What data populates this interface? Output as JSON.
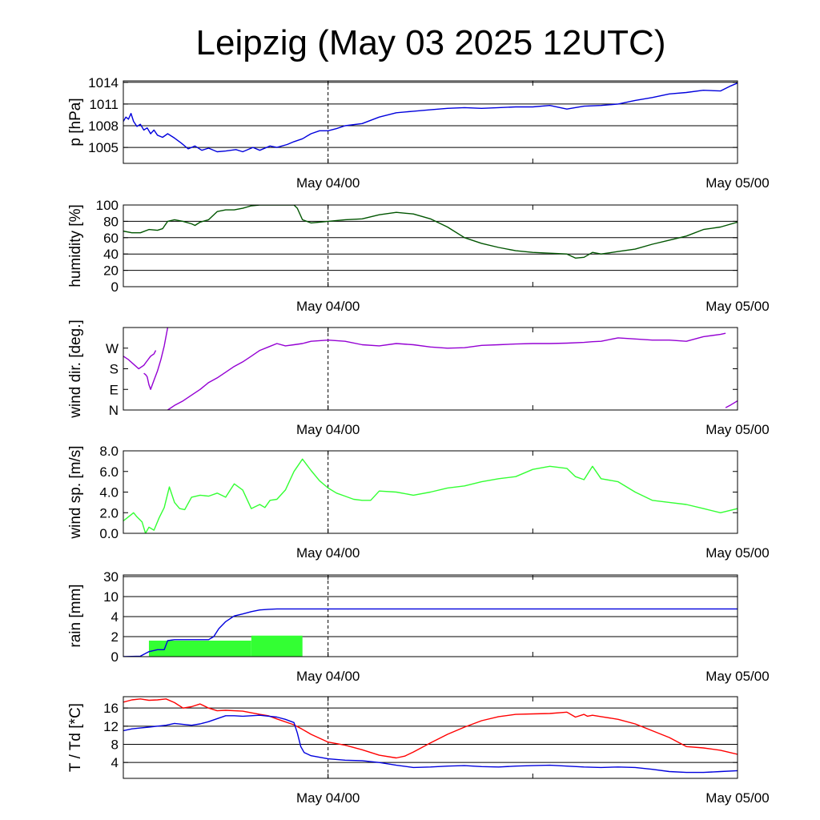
{
  "title": "Leipzig (May 03 2025 12UTC)",
  "colors": {
    "pressure": "#0000dd",
    "humidity": "#005500",
    "wind_dir": "#9400d3",
    "wind_speed": "#33ff33",
    "rain_bar": "#33ff33",
    "rain_line": "#0000dd",
    "temperature": "#ff0000",
    "dewpoint": "#0000dd"
  },
  "x_axis": {
    "ticks": [
      "May 04/00",
      "May 05/00"
    ],
    "range_hours": [
      0,
      36
    ],
    "marked_hour": 12,
    "note": "hours after May 03 12UTC"
  },
  "chart_data": [
    {
      "type": "line",
      "ylabel": "p [hPa]",
      "ylim": [
        1002.8,
        1014.2
      ],
      "yticks": [
        1005,
        1008,
        1011,
        1014
      ],
      "ytick_labels": [
        "1005",
        "1008",
        "1011",
        "1014"
      ],
      "grid": true,
      "series": [
        {
          "color_key": "pressure",
          "x": [
            0,
            0.15,
            0.3,
            0.45,
            0.6,
            0.8,
            1.0,
            1.2,
            1.4,
            1.6,
            1.8,
            2.0,
            2.3,
            2.6,
            3.0,
            3.4,
            3.8,
            4.2,
            4.6,
            5.0,
            5.5,
            6.0,
            6.6,
            7.0,
            7.6,
            8.0,
            8.6,
            9.0,
            9.6,
            10.0,
            10.5,
            11.0,
            11.5,
            12.0,
            12.5,
            13.0,
            14.0,
            15.0,
            16.0,
            17.0,
            18.0,
            19.0,
            20.0,
            21.0,
            22.0,
            23.0,
            24.0,
            25.0,
            26.0,
            27.0,
            28.0,
            29.0,
            30.0,
            31.0,
            32.0,
            33.0,
            34.0,
            35.0,
            35.6,
            36.0
          ],
          "y": [
            1008.6,
            1009.2,
            1008.9,
            1009.7,
            1008.6,
            1007.9,
            1008.2,
            1007.4,
            1007.7,
            1006.9,
            1007.4,
            1006.7,
            1006.4,
            1006.9,
            1006.3,
            1005.6,
            1004.8,
            1005.2,
            1004.6,
            1004.9,
            1004.4,
            1004.5,
            1004.7,
            1004.4,
            1005.0,
            1004.6,
            1005.2,
            1005.0,
            1005.4,
            1005.8,
            1006.2,
            1006.9,
            1007.3,
            1007.3,
            1007.6,
            1008.0,
            1008.3,
            1009.2,
            1009.8,
            1010.0,
            1010.2,
            1010.4,
            1010.5,
            1010.4,
            1010.5,
            1010.6,
            1010.6,
            1010.8,
            1010.3,
            1010.7,
            1010.8,
            1011.0,
            1011.5,
            1011.9,
            1012.4,
            1012.6,
            1012.9,
            1012.8,
            1013.5,
            1013.9
          ]
        }
      ]
    },
    {
      "type": "line",
      "ylabel": "humidity [%]",
      "ylim": [
        0,
        100
      ],
      "yticks": [
        0,
        20,
        40,
        60,
        80,
        100
      ],
      "ytick_labels": [
        "0",
        "20",
        "40",
        "60",
        "80",
        "100"
      ],
      "grid": true,
      "series": [
        {
          "color_key": "humidity",
          "x": [
            0,
            0.5,
            1.0,
            1.5,
            2.0,
            2.3,
            2.6,
            3.0,
            3.5,
            4.0,
            4.2,
            4.5,
            5.0,
            5.5,
            6.0,
            6.5,
            7.0,
            7.5,
            8.0,
            8.5,
            9.0,
            9.5,
            10.0,
            10.2,
            10.5,
            11.0,
            11.5,
            12.0,
            12.5,
            13.0,
            14.0,
            15.0,
            16.0,
            17.0,
            18.0,
            19.0,
            20.0,
            21.0,
            22.0,
            23.0,
            24.0,
            25.0,
            26.0,
            26.5,
            27.0,
            27.5,
            28.0,
            29.0,
            30.0,
            31.0,
            32.0,
            33.0,
            34.0,
            35.0,
            36.0
          ],
          "y": [
            68,
            66,
            66,
            70,
            69,
            71,
            80,
            82,
            80,
            77,
            75,
            79,
            82,
            92,
            94,
            94,
            96,
            99,
            100,
            100,
            100,
            100,
            100,
            96,
            82,
            78,
            79,
            80,
            81,
            82,
            83,
            88,
            91,
            89,
            83,
            73,
            60,
            53,
            48,
            44,
            42,
            41,
            40,
            35,
            36,
            42,
            40,
            43,
            46,
            52,
            57,
            62,
            70,
            73,
            79
          ]
        }
      ]
    },
    {
      "type": "line",
      "ylabel": "wind dir. [deg.]",
      "ylim": [
        0,
        360
      ],
      "yticks": [
        0,
        90,
        180,
        270
      ],
      "ytick_labels": [
        "N",
        "E",
        "S",
        "W"
      ],
      "grid": false,
      "series": [
        {
          "color_key": "wind_dir",
          "x": [
            0,
            0.3,
            0.6,
            0.9,
            1.2,
            1.4,
            1.6,
            1.8,
            1.9
          ],
          "y": [
            235,
            220,
            200,
            180,
            195,
            215,
            235,
            245,
            260
          ]
        },
        {
          "color_key": "wind_dir",
          "x": [
            1.2,
            1.3,
            1.4,
            1.5,
            1.6,
            1.8,
            2.0,
            2.2,
            2.4,
            2.6
          ],
          "y": [
            160,
            155,
            145,
            110,
            90,
            130,
            170,
            220,
            280,
            360
          ]
        },
        {
          "color_key": "wind_dir",
          "x": [
            2.6,
            3.0,
            3.5,
            4.0,
            4.5,
            5.0,
            5.5,
            6.0,
            6.5,
            7.0,
            7.5,
            8.0,
            8.5,
            9.0,
            9.5,
            10.0,
            10.5,
            11.0,
            12.0,
            13.0,
            14.0,
            15.0,
            16.0,
            17.0,
            18.0,
            19.0,
            20.0,
            21.0,
            22.0,
            23.0,
            24.0,
            25.0,
            26.0,
            27.0,
            27.5,
            28.0,
            29.0,
            30.0,
            31.0,
            32.0,
            33.0,
            34.0,
            35.0,
            35.3
          ],
          "y": [
            0,
            20,
            40,
            65,
            90,
            120,
            140,
            165,
            190,
            210,
            235,
            260,
            275,
            290,
            280,
            285,
            290,
            300,
            305,
            300,
            285,
            280,
            290,
            285,
            275,
            270,
            272,
            282,
            285,
            288,
            290,
            290,
            292,
            295,
            298,
            300,
            315,
            310,
            305,
            305,
            300,
            320,
            330,
            335
          ]
        },
        {
          "color_key": "wind_dir",
          "x": [
            35.3,
            35.6,
            36.0
          ],
          "y": [
            10,
            22,
            40
          ]
        }
      ]
    },
    {
      "type": "line",
      "ylabel": "wind sp. [m/s]",
      "ylim": [
        0,
        8
      ],
      "yticks": [
        0,
        2,
        4,
        6,
        8
      ],
      "ytick_labels": [
        "0.0",
        "2.0",
        "4.0",
        "6.0",
        "8.0"
      ],
      "grid": false,
      "series": [
        {
          "color_key": "wind_speed",
          "x": [
            0,
            0.3,
            0.6,
            0.8,
            1.1,
            1.3,
            1.5,
            1.8,
            2.1,
            2.4,
            2.7,
            3.0,
            3.3,
            3.6,
            4.0,
            4.5,
            5.0,
            5.5,
            6.0,
            6.5,
            7.0,
            7.5,
            8.0,
            8.3,
            8.6,
            9.0,
            9.5,
            10.0,
            10.5,
            11.0,
            11.5,
            12.0,
            12.5,
            13.0,
            13.5,
            14.0,
            14.5,
            15.0,
            16.0,
            17.0,
            18.0,
            19.0,
            20.0,
            21.0,
            22.0,
            23.0,
            24.0,
            25.0,
            26.0,
            26.5,
            27.0,
            27.5,
            28.0,
            29.0,
            30.0,
            31.0,
            32.0,
            33.0,
            34.0,
            35.0,
            36.0
          ],
          "y": [
            1.2,
            1.6,
            2.0,
            1.6,
            1.1,
            0.0,
            0.6,
            0.3,
            1.5,
            2.5,
            4.5,
            3.0,
            2.4,
            2.3,
            3.5,
            3.7,
            3.6,
            3.9,
            3.5,
            4.8,
            4.2,
            2.4,
            2.8,
            2.5,
            3.2,
            3.3,
            4.2,
            6.0,
            7.2,
            6.1,
            5.1,
            4.4,
            3.9,
            3.6,
            3.3,
            3.2,
            3.2,
            4.1,
            4.0,
            3.7,
            4.0,
            4.4,
            4.6,
            5.0,
            5.3,
            5.5,
            6.2,
            6.5,
            6.3,
            5.5,
            5.2,
            6.5,
            5.3,
            5.0,
            4.0,
            3.2,
            3.0,
            2.8,
            2.4,
            2.0,
            2.4
          ]
        }
      ]
    },
    {
      "type": "bar+line",
      "ylabel": "rain [mm]",
      "ylim": [
        0,
        30
      ],
      "yticks": [
        0,
        2,
        4,
        10,
        30
      ],
      "ytick_labels": [
        "0",
        "2",
        "4",
        "10",
        "30"
      ],
      "scale": "nonlinear",
      "grid": true,
      "bars": [
        {
          "x_start": 1.5,
          "x_end": 7.5,
          "value": 1.6
        },
        {
          "x_start": 7.5,
          "x_end": 10.5,
          "value": 2.1
        }
      ],
      "series": [
        {
          "color_key": "rain_line",
          "x": [
            0,
            1.0,
            1.5,
            2.0,
            2.4,
            2.6,
            3.0,
            4.0,
            5.0,
            5.3,
            5.6,
            6.0,
            6.5,
            7.0,
            7.5,
            8.0,
            8.5,
            9.0,
            10.0,
            11.0,
            12.0,
            20.0,
            30.0,
            36.0
          ],
          "y": [
            0.0,
            0.05,
            0.5,
            0.7,
            0.7,
            1.6,
            1.7,
            1.7,
            1.7,
            2.0,
            2.8,
            3.5,
            4.2,
            4.8,
            5.5,
            6.0,
            6.2,
            6.3,
            6.3,
            6.3,
            6.3,
            6.3,
            6.3,
            6.3
          ]
        }
      ]
    },
    {
      "type": "line",
      "ylabel": "T / Td [*C]",
      "ylim": [
        0.5,
        18.5
      ],
      "yticks": [
        4,
        8,
        12,
        16
      ],
      "ytick_labels": [
        "4",
        "8",
        "12",
        "16"
      ],
      "grid": true,
      "series": [
        {
          "color_key": "temperature",
          "x": [
            0,
            0.5,
            1.0,
            1.5,
            2.0,
            2.5,
            3.0,
            3.5,
            4.0,
            4.5,
            5.0,
            5.5,
            6.0,
            7.0,
            8.0,
            8.5,
            9.0,
            10.0,
            10.5,
            11.0,
            12.0,
            13.0,
            14.0,
            15.0,
            16.0,
            16.5,
            17.0,
            18.0,
            19.0,
            20.0,
            21.0,
            22.0,
            23.0,
            24.0,
            25.0,
            26.0,
            26.5,
            27.0,
            27.2,
            27.5,
            28.0,
            29.0,
            30.0,
            31.0,
            32.0,
            33.0,
            34.0,
            35.0,
            36.0
          ],
          "y": [
            17.3,
            17.8,
            18.0,
            17.7,
            17.8,
            18.0,
            17.2,
            16.0,
            16.3,
            16.9,
            16.0,
            15.4,
            15.5,
            15.3,
            14.6,
            14.3,
            13.6,
            12.3,
            11.3,
            10.2,
            8.5,
            7.8,
            6.8,
            5.6,
            5.0,
            5.4,
            6.3,
            8.3,
            10.2,
            11.8,
            13.2,
            14.1,
            14.6,
            14.7,
            14.8,
            15.1,
            14.0,
            14.6,
            14.2,
            14.4,
            14.1,
            13.5,
            12.5,
            11.0,
            9.5,
            7.5,
            7.2,
            6.7,
            5.8
          ]
        },
        {
          "color_key": "dewpoint",
          "x": [
            0,
            0.5,
            1.0,
            1.5,
            2.0,
            2.5,
            3.0,
            3.5,
            4.0,
            4.5,
            5.0,
            6.0,
            6.5,
            7.0,
            8.0,
            9.0,
            9.5,
            10.0,
            10.2,
            10.4,
            10.6,
            11.0,
            12.0,
            13.0,
            14.0,
            15.0,
            16.0,
            17.0,
            18.0,
            19.0,
            20.0,
            21.0,
            22.0,
            23.0,
            24.0,
            25.0,
            26.0,
            27.0,
            28.0,
            29.0,
            30.0,
            31.0,
            32.0,
            33.0,
            34.0,
            35.0,
            36.0
          ],
          "y": [
            11.0,
            11.4,
            11.6,
            11.8,
            12.0,
            12.2,
            12.6,
            12.4,
            12.2,
            12.5,
            13.0,
            14.3,
            14.3,
            14.2,
            14.4,
            14.0,
            13.5,
            12.8,
            10.5,
            7.5,
            6.2,
            5.5,
            4.8,
            4.5,
            4.4,
            4.0,
            3.4,
            2.9,
            3.0,
            3.2,
            3.3,
            3.1,
            3.0,
            3.2,
            3.3,
            3.4,
            3.2,
            3.0,
            2.9,
            3.0,
            2.9,
            2.5,
            2.0,
            1.8,
            1.8,
            2.0,
            2.2
          ]
        }
      ]
    }
  ]
}
